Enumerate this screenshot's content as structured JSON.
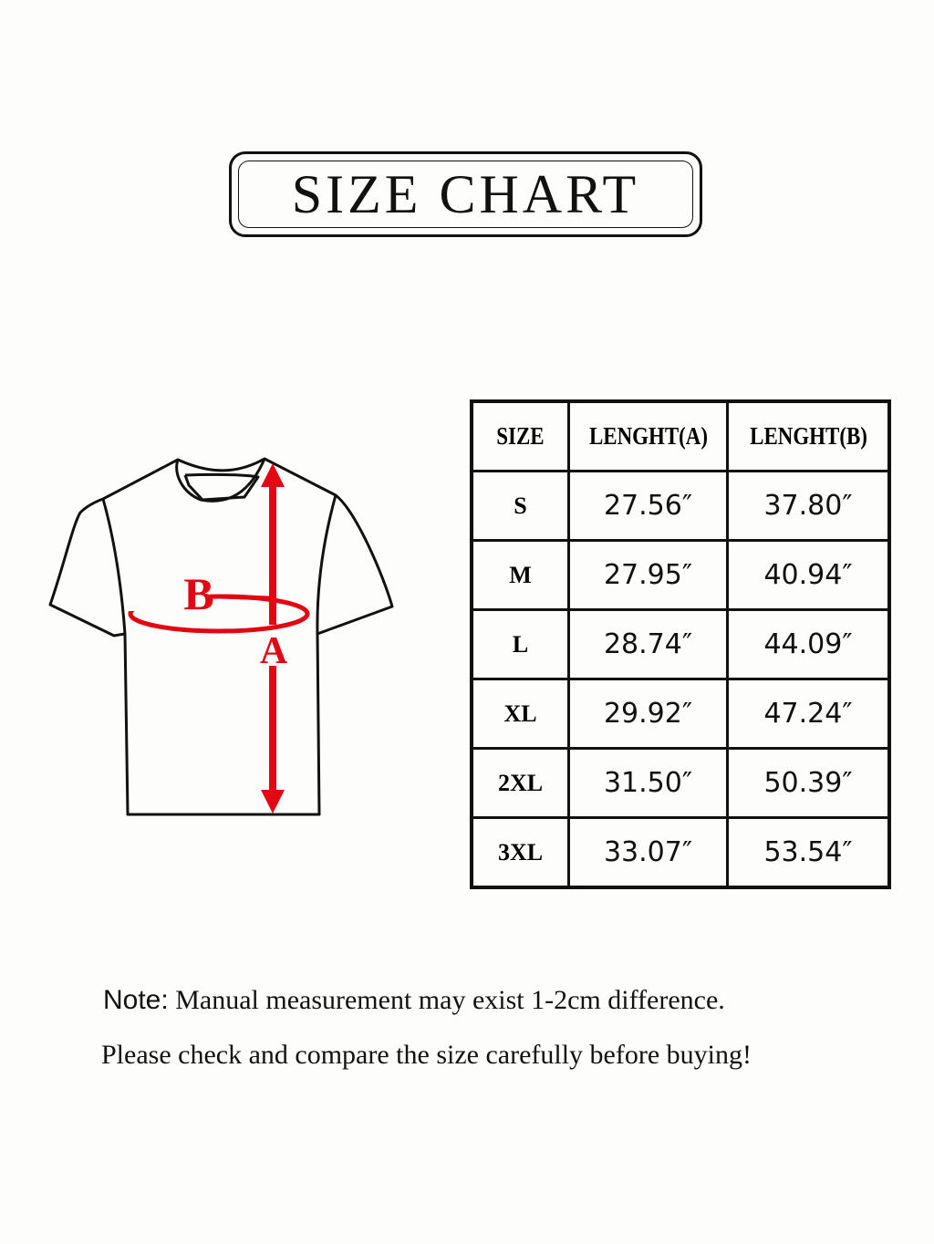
{
  "title": "SIZE CHART",
  "diagram": {
    "label_a": "A",
    "label_b": "B",
    "accent_color": "#e30613",
    "outline_color": "#111111"
  },
  "table": {
    "headers": [
      "SIZE",
      "LENGHT(A)",
      "LENGHT(B)"
    ],
    "rows": [
      {
        "size": "S",
        "a": "27.56″",
        "b": "37.80″"
      },
      {
        "size": "M",
        "a": "27.95″",
        "b": "40.94″"
      },
      {
        "size": "L",
        "a": "28.74″",
        "b": "44.09″"
      },
      {
        "size": "XL",
        "a": "29.92″",
        "b": "47.24″"
      },
      {
        "size": "2XL",
        "a": "31.50″",
        "b": "50.39″"
      },
      {
        "size": "3XL",
        "a": "33.07″",
        "b": "53.54″"
      }
    ]
  },
  "note": {
    "label": "Note:",
    "line1": "Manual measurement may exist 1-2cm difference.",
    "line2": "Please check and compare the size carefully before buying!"
  }
}
